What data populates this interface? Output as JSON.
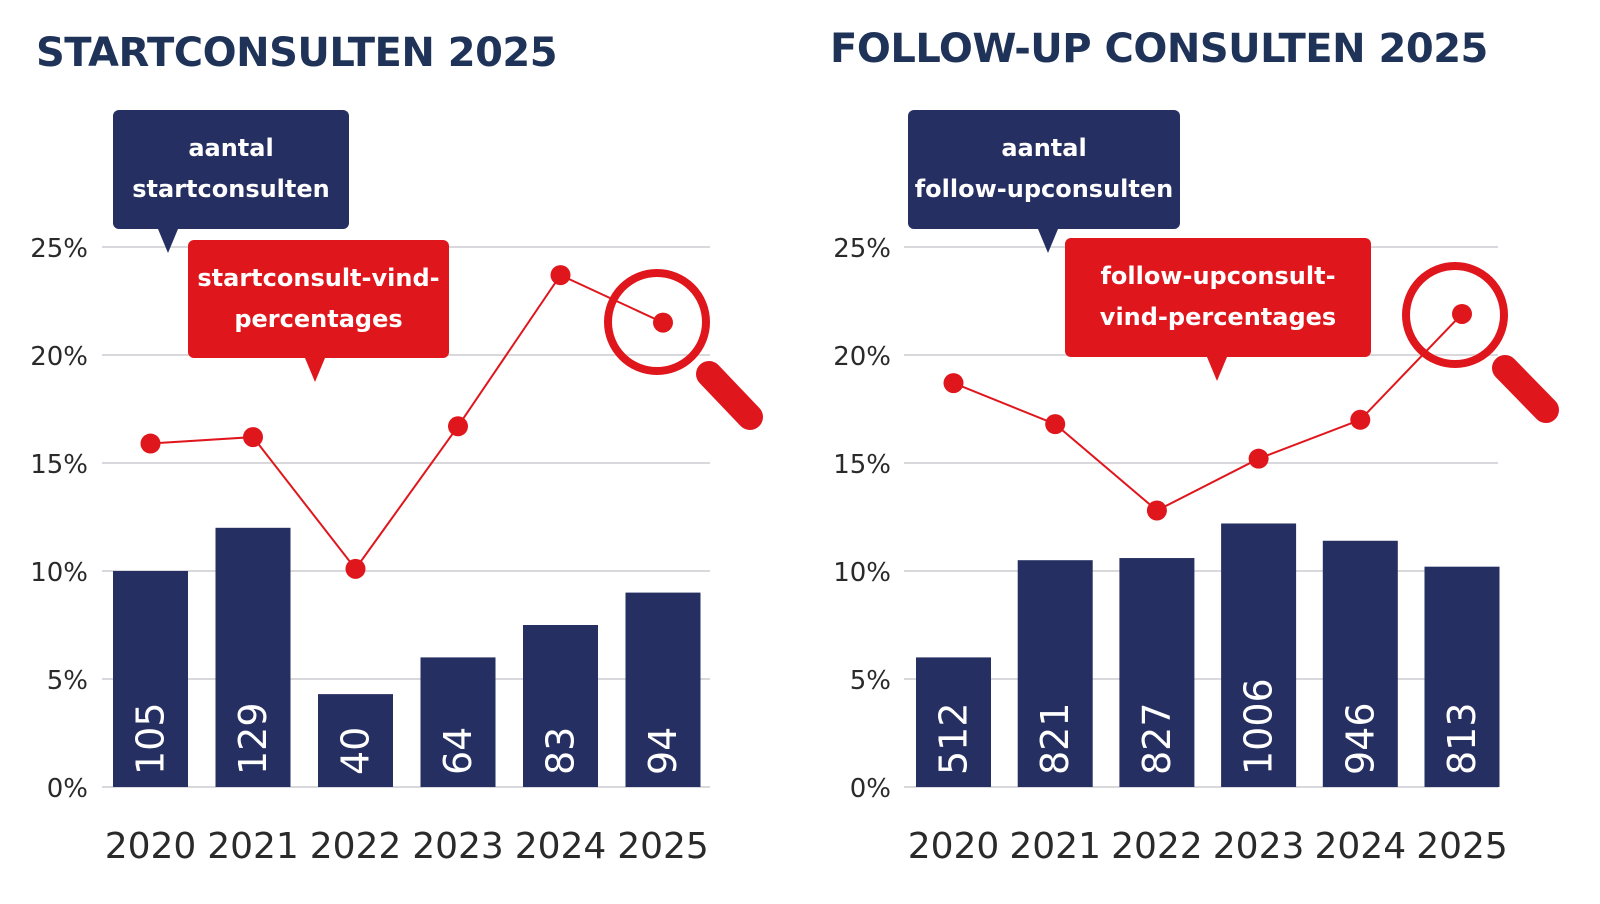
{
  "colors": {
    "navy": "#262f61",
    "red": "#e0161d",
    "title": "#1f3359",
    "grid": "#d9d9dd",
    "axis_text": "#2a2a2a"
  },
  "chart_data": [
    {
      "type": "bar",
      "title": "STARTCONSULTEN 2025",
      "categories": [
        "2020",
        "2021",
        "2022",
        "2023",
        "2024",
        "2025"
      ],
      "yticks": [
        "0%",
        "5%",
        "10%",
        "15%",
        "20%",
        "25%"
      ],
      "ylim": [
        0,
        25
      ],
      "grid": true,
      "series": [
        {
          "name": "aantal startconsulten",
          "kind": "bar",
          "bar_labels": [
            "105",
            "129",
            "40",
            "64",
            "83",
            "94"
          ],
          "values": [
            10.0,
            12.0,
            4.3,
            6.0,
            7.5,
            9.0
          ]
        },
        {
          "name": "startconsult-vind-percentages",
          "kind": "line",
          "values": [
            15.9,
            16.2,
            10.1,
            16.7,
            23.7,
            21.5
          ]
        }
      ],
      "callouts": {
        "count": [
          "aantal",
          "startconsulten"
        ],
        "rate": [
          "startconsult-vind-",
          "percentages"
        ]
      },
      "highlight": "2025"
    },
    {
      "type": "bar",
      "title": "FOLLOW-UP CONSULTEN 2025",
      "categories": [
        "2020",
        "2021",
        "2022",
        "2023",
        "2024",
        "2025"
      ],
      "yticks": [
        "0%",
        "5%",
        "10%",
        "15%",
        "20%",
        "25%"
      ],
      "ylim": [
        0,
        25
      ],
      "grid": true,
      "series": [
        {
          "name": "aantal follow-upconsulten",
          "kind": "bar",
          "bar_labels": [
            "512",
            "821",
            "827",
            "1006",
            "946",
            "813"
          ],
          "values": [
            6.0,
            10.5,
            10.6,
            12.2,
            11.4,
            10.2
          ]
        },
        {
          "name": "follow-upconsult-vind-percentages",
          "kind": "line",
          "values": [
            18.7,
            16.8,
            12.8,
            15.2,
            17.0,
            21.9
          ]
        }
      ],
      "callouts": {
        "count": [
          "aantal",
          "follow-upconsulten"
        ],
        "rate": [
          "follow-upconsult-",
          "vind-percentages"
        ]
      },
      "highlight": "2025"
    }
  ]
}
